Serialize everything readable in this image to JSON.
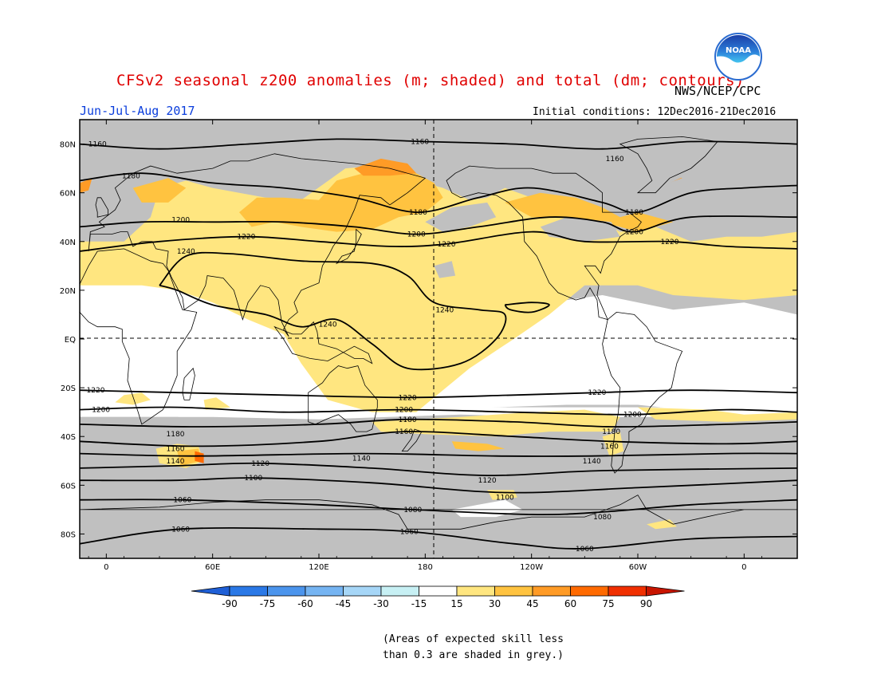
{
  "header": {
    "title": "CFSv2 seasonal z200 anomalies (m; shaded) and total (dm; contours)",
    "organization": "NWS/NCEP/CPC",
    "period": "Jun-Jul-Aug 2017",
    "initial_conditions": "Initial conditions: 12Dec2016-21Dec2016",
    "logo_text": "NOAA"
  },
  "map": {
    "projection": "cylindrical equidistant",
    "lat_labels": [
      "80N",
      "60N",
      "40N",
      "20N",
      "EQ",
      "20S",
      "40S",
      "60S",
      "80S"
    ],
    "lon_labels": [
      "0",
      "60E",
      "120E",
      "180",
      "120W",
      "60W",
      "0"
    ],
    "dashed_reference_lines": [
      "EQ",
      "180"
    ],
    "contour_labels": [
      {
        "value": "1160",
        "lat": 80,
        "lon": -5
      },
      {
        "value": "1160",
        "lat": 81,
        "lon": 177
      },
      {
        "value": "1160",
        "lat": 74,
        "lon": 287
      },
      {
        "value": "1180",
        "lat": 67,
        "lon": 14
      },
      {
        "value": "1180",
        "lat": 52,
        "lon": 176
      },
      {
        "value": "1180",
        "lat": 52,
        "lon": 298
      },
      {
        "value": "1200",
        "lat": 49,
        "lon": 42
      },
      {
        "value": "1200",
        "lat": 43,
        "lon": 175
      },
      {
        "value": "1200",
        "lat": 44,
        "lon": 298
      },
      {
        "value": "1220",
        "lat": 42,
        "lon": 79
      },
      {
        "value": "1220",
        "lat": 39,
        "lon": 192
      },
      {
        "value": "1220",
        "lat": 40,
        "lon": 318
      },
      {
        "value": "1240",
        "lat": 36,
        "lon": 45
      },
      {
        "value": "1240",
        "lat": 6,
        "lon": 125
      },
      {
        "value": "1240",
        "lat": 12,
        "lon": 191
      },
      {
        "value": "1220",
        "lat": -21,
        "lon": -6
      },
      {
        "value": "1200",
        "lat": -29,
        "lon": -3
      },
      {
        "value": "1220",
        "lat": -24,
        "lon": 170
      },
      {
        "value": "1200",
        "lat": -29,
        "lon": 168
      },
      {
        "value": "1180",
        "lat": -33,
        "lon": 170
      },
      {
        "value": "1160",
        "lat": -38,
        "lon": 168
      },
      {
        "value": "1220",
        "lat": -22,
        "lon": 277
      },
      {
        "value": "1200",
        "lat": -31,
        "lon": 297
      },
      {
        "value": "1180",
        "lat": -38,
        "lon": 285
      },
      {
        "value": "1160",
        "lat": -44,
        "lon": 284
      },
      {
        "value": "1140",
        "lat": -50,
        "lon": 274
      },
      {
        "value": "1180",
        "lat": -39,
        "lon": 39
      },
      {
        "value": "1160",
        "lat": -45,
        "lon": 39
      },
      {
        "value": "1140",
        "lat": -50,
        "lon": 39
      },
      {
        "value": "1120",
        "lat": -51,
        "lon": 87
      },
      {
        "value": "1140",
        "lat": -49,
        "lon": 144
      },
      {
        "value": "1100",
        "lat": -57,
        "lon": 83
      },
      {
        "value": "1120",
        "lat": -58,
        "lon": 215
      },
      {
        "value": "1100",
        "lat": -65,
        "lon": 225
      },
      {
        "value": "1060",
        "lat": -66,
        "lon": 43
      },
      {
        "value": "1080",
        "lat": -70,
        "lon": 173
      },
      {
        "value": "1080",
        "lat": -73,
        "lon": 280
      },
      {
        "value": "1060",
        "lat": -78,
        "lon": 42
      },
      {
        "value": "1060",
        "lat": -79,
        "lon": 171
      },
      {
        "value": "1060",
        "lat": -86,
        "lon": 270
      }
    ]
  },
  "colorbar": {
    "labels": [
      "-90",
      "-75",
      "-60",
      "-45",
      "-30",
      "-15",
      "15",
      "30",
      "45",
      "60",
      "75",
      "90"
    ],
    "colors": [
      "#1f5fd6",
      "#2a78e6",
      "#4b94ec",
      "#75b4f2",
      "#a6d6f7",
      "#c7f0f4",
      "#ffffff",
      "#ffe680",
      "#ffc340",
      "#ff9b26",
      "#ff6a00",
      "#f02f00",
      "#c81500"
    ]
  },
  "note": {
    "line1": "(Areas of expected skill less",
    "line2": "than 0.3 are shaded in grey.)"
  },
  "colors": {
    "title": "#e00000",
    "period": "#0a3ddc",
    "grey_mask": "#c0c0c0",
    "anom_15_30": "#ffe680",
    "anom_30_45": "#ffc340",
    "anom_45_60": "#ff9b26",
    "anom_60_75": "#ff6a00"
  }
}
